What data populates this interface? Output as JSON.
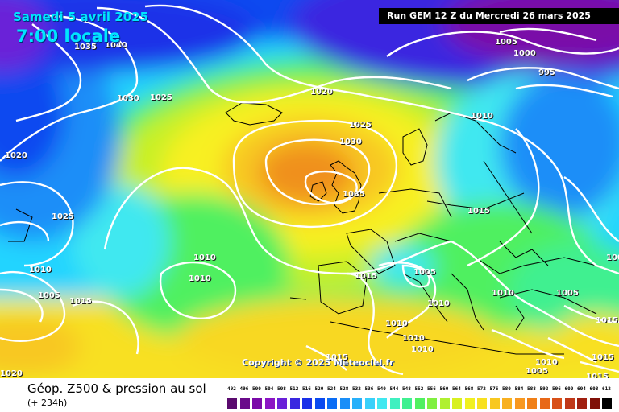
{
  "map": {
    "valid_date": "Samedi 5 avril 2025",
    "valid_time": "7:00 locale",
    "run_info": "Run GEM 12 Z du Mercredi 26 mars 2025",
    "copyright": "Copyright © 2025 Meteociel.fr",
    "isobar_labels": [
      "1035",
      "1040",
      "1030",
      "1025",
      "1020",
      "1025",
      "1030",
      "1035",
      "1010",
      "1005",
      "1000",
      "995",
      "1010",
      "1020",
      "1025",
      "1010",
      "1005",
      "1015",
      "1010",
      "1005",
      "1005",
      "1015",
      "1010",
      "1005",
      "1010",
      "1010",
      "1010",
      "1015",
      "1015",
      "1015",
      "1010",
      "1020",
      "1005",
      "1015",
      "1015",
      "1010"
    ]
  },
  "bottom": {
    "title": "Géop. Z500 & pression au sol",
    "forecast_hour": "(+ 234h)"
  },
  "legend": {
    "values": [
      "492",
      "496",
      "500",
      "504",
      "508",
      "512",
      "516",
      "520",
      "524",
      "528",
      "532",
      "536",
      "540",
      "544",
      "548",
      "552",
      "556",
      "560",
      "564",
      "568",
      "572",
      "576",
      "580",
      "584",
      "588",
      "592",
      "596",
      "600",
      "604",
      "608",
      "612"
    ],
    "colors": [
      "#5a0a6e",
      "#6a0a8a",
      "#7a0aa8",
      "#8b14c4",
      "#6a20d8",
      "#3a28e0",
      "#1a30e8",
      "#0a4af0",
      "#0a6cf5",
      "#1a8ef8",
      "#28b0fa",
      "#38d0fa",
      "#40e8f0",
      "#40f0c0",
      "#40f090",
      "#50f060",
      "#80f040",
      "#b0f030",
      "#d8f020",
      "#f0f020",
      "#f8e020",
      "#f8c820",
      "#f8b020",
      "#f89820",
      "#f08018",
      "#e86818",
      "#d85018",
      "#c03818",
      "#a02010",
      "#801008",
      "#000000"
    ]
  }
}
